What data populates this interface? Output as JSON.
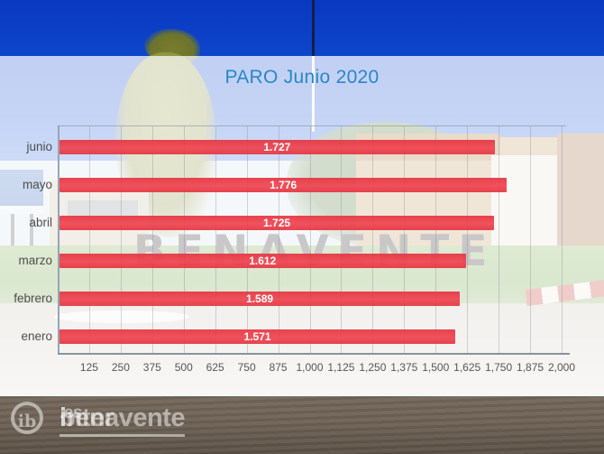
{
  "title": {
    "text": "PARO Junio 2020",
    "color": "#2b86c8"
  },
  "chart_data": {
    "type": "bar",
    "orientation": "horizontal",
    "title": "PARO Junio 2020",
    "categories": [
      "junio",
      "mayo",
      "abril",
      "marzo",
      "febrero",
      "enero"
    ],
    "values": [
      1727,
      1776,
      1725,
      1612,
      1589,
      1571
    ],
    "value_labels": [
      "1.727",
      "1.776",
      "1.725",
      "1.612",
      "1.589",
      "1.571"
    ],
    "xlim": [
      0,
      2000
    ],
    "x_ticks": [
      125,
      250,
      375,
      500,
      625,
      750,
      875,
      1000,
      1125,
      1250,
      1375,
      1500,
      1625,
      1750,
      1875,
      2000
    ],
    "x_tick_labels": [
      "125",
      "250",
      "375",
      "500",
      "625",
      "750",
      "875",
      "1,000",
      "1,125",
      "1,250",
      "1,375",
      "1,500",
      "1,625",
      "1,750",
      "1,875",
      "2,000"
    ],
    "bar_color": "#e5333f",
    "value_label_color": "#ffffff",
    "grid": true,
    "legend": null
  },
  "background": {
    "benavente_sign_text": "BENAVENTE"
  },
  "watermark": {
    "monogram": "ib",
    "name_prefix": "inter",
    "name_underlined": "benavente",
    "tld": ".es"
  }
}
